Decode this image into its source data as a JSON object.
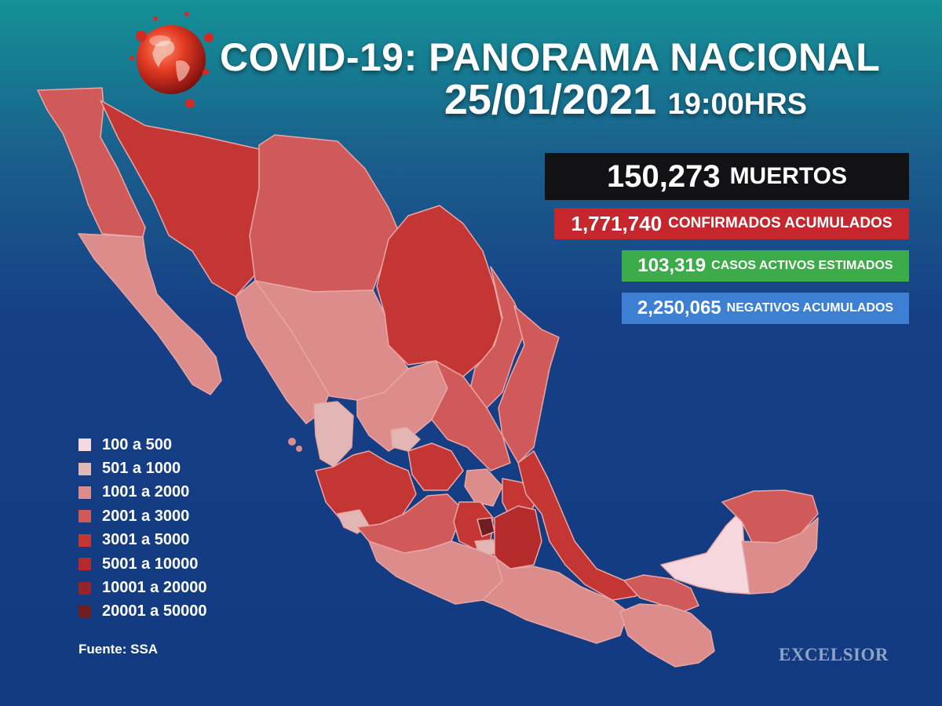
{
  "header": {
    "title": "COVID-19: PANORAMA NACIONAL",
    "date": "25/01/2021",
    "time": "19:00HRS"
  },
  "stats": {
    "deaths": {
      "value": "150,273",
      "label": "MUERTOS",
      "color": "#121214"
    },
    "confirmed": {
      "value": "1,771,740",
      "label": "CONFIRMADOS ACUMULADOS",
      "color": "#c5272d"
    },
    "active": {
      "value": "103,319",
      "label": "CASOS ACTIVOS ESTIMADOS",
      "color": "#3cac4a"
    },
    "negative": {
      "value": "2,250,065",
      "label": "NEGATIVOS ACUMULADOS",
      "color": "#3d7fd3"
    }
  },
  "legend": {
    "items": [
      {
        "label": "100 a 500",
        "color": "#f5d8de"
      },
      {
        "label": "501 a 1000",
        "color": "#e2b6b4"
      },
      {
        "label": "1001 a 2000",
        "color": "#dc8c8a"
      },
      {
        "label": "2001 a 3000",
        "color": "#d0595a"
      },
      {
        "label": "3001 a 5000",
        "color": "#c43633"
      },
      {
        "label": "5001 a 10000",
        "color": "#b52b2c"
      },
      {
        "label": "10001 a 20000",
        "color": "#962327"
      },
      {
        "label": "20001 a 50000",
        "color": "#6e1e22"
      }
    ]
  },
  "footer": {
    "source": "Fuente: SSA",
    "brand": "EXCELSIOR"
  },
  "map": {
    "background_color": "#123a80",
    "accent_red": "#c5272d"
  }
}
